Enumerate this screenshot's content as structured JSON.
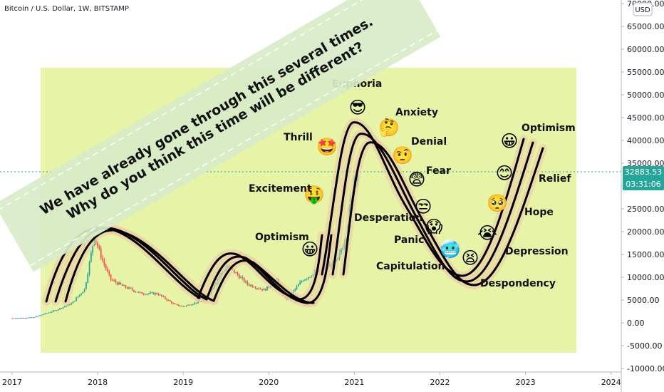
{
  "symbol_title": "Bitcoin / U.S. Dollar, 1W, BITSTAMP",
  "currency_button": "USD",
  "banner": {
    "line1": "We have already gone through this several times.",
    "line2": "Why do you think this time will be different?"
  },
  "price_tag": {
    "price": "32883.53",
    "timer": "03:31:06",
    "color": "#26a69a"
  },
  "colors": {
    "panel": "#e7f3a6",
    "candle_up": "#26a69a",
    "candle_down": "#ef5350",
    "wave_shadow": "#efc9a8",
    "banner": "#d8ecc8"
  },
  "chart_data": {
    "type": "candlestick",
    "y_ticks": [
      "70000.00",
      "65000.00",
      "60000.00",
      "55000.00",
      "50000.00",
      "45000.00",
      "40000.00",
      "35000.00",
      "30000.00",
      "25000.00",
      "20000.00",
      "15000.00",
      "10000.00",
      "5000.00",
      "0.00",
      "-5000.00",
      "-10000.00"
    ],
    "x_ticks": [
      "2017",
      "2018",
      "2019",
      "2020",
      "2021",
      "2022",
      "2023",
      "2024"
    ],
    "ylim": [
      -10000,
      70000
    ],
    "series": [
      {
        "x": 2017.0,
        "y": 1000
      },
      {
        "x": 2017.25,
        "y": 1200
      },
      {
        "x": 2017.5,
        "y": 2700
      },
      {
        "x": 2017.7,
        "y": 4300
      },
      {
        "x": 2017.85,
        "y": 7500
      },
      {
        "x": 2017.96,
        "y": 19000
      },
      {
        "x": 2018.05,
        "y": 14000
      },
      {
        "x": 2018.15,
        "y": 9500
      },
      {
        "x": 2018.3,
        "y": 8000
      },
      {
        "x": 2018.5,
        "y": 6500
      },
      {
        "x": 2018.7,
        "y": 6400
      },
      {
        "x": 2018.9,
        "y": 4000
      },
      {
        "x": 2019.0,
        "y": 3600
      },
      {
        "x": 2019.25,
        "y": 5000
      },
      {
        "x": 2019.45,
        "y": 11000
      },
      {
        "x": 2019.52,
        "y": 12500
      },
      {
        "x": 2019.75,
        "y": 8500
      },
      {
        "x": 2019.95,
        "y": 7200
      },
      {
        "x": 2020.1,
        "y": 9500
      },
      {
        "x": 2020.2,
        "y": 5000
      },
      {
        "x": 2020.4,
        "y": 9500
      },
      {
        "x": 2020.6,
        "y": 11500
      },
      {
        "x": 2020.8,
        "y": 13500
      },
      {
        "x": 2020.9,
        "y": 19000
      },
      {
        "x": 2021.0,
        "y": 32000
      },
      {
        "x": 2021.05,
        "y": 33000
      }
    ],
    "annotations": [
      {
        "label": "Optimism",
        "emoji": "😀"
      },
      {
        "label": "Excitement",
        "emoji": "🤑"
      },
      {
        "label": "Thrill",
        "emoji": "🤩"
      },
      {
        "label": "Euphoria",
        "emoji": "😎"
      },
      {
        "label": "Anxiety",
        "emoji": "🤔"
      },
      {
        "label": "Denial",
        "emoji": "🤨"
      },
      {
        "label": "Fear",
        "emoji": "😨"
      },
      {
        "label": "Desperation",
        "emoji": "😒"
      },
      {
        "label": "Panic",
        "emoji": "😱"
      },
      {
        "label": "Capitulation",
        "emoji": "🥶"
      },
      {
        "label": "Despondency",
        "emoji": "😫"
      },
      {
        "label": "Depression",
        "emoji": "😭"
      },
      {
        "label": "Hope",
        "emoji": "🥺"
      },
      {
        "label": "Relief",
        "emoji": "😊"
      },
      {
        "label": "Optimism",
        "emoji": "😀"
      }
    ]
  }
}
